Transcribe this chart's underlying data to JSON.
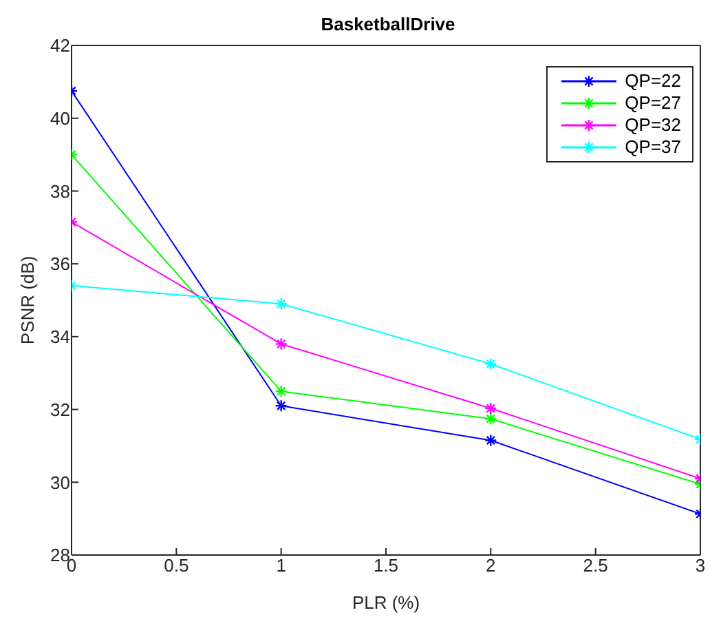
{
  "chart_data": {
    "type": "line",
    "title": "BasketballDrive",
    "xlabel": "PLR (%)",
    "ylabel": "PSNR (dB)",
    "x": [
      0,
      1,
      2,
      3
    ],
    "xlim": [
      0,
      3
    ],
    "xticks": [
      0,
      0.5,
      1,
      1.5,
      2,
      2.5,
      3
    ],
    "ylim": [
      28,
      42
    ],
    "yticks": [
      28,
      30,
      32,
      34,
      36,
      38,
      40,
      42
    ],
    "grid": false,
    "legend": "top right",
    "marker": "cross",
    "line_style": "solid",
    "series": [
      {
        "name": "QP=22",
        "color": "#0000ff",
        "values": [
          40.75,
          32.1,
          31.15,
          29.13
        ]
      },
      {
        "name": "QP=27",
        "color": "#00ff00",
        "values": [
          39.0,
          32.5,
          31.74,
          29.95
        ]
      },
      {
        "name": "QP=32",
        "color": "#ff00ff",
        "values": [
          37.15,
          33.8,
          32.03,
          30.1
        ]
      },
      {
        "name": "QP=37",
        "color": "#00ffff",
        "values": [
          35.4,
          34.9,
          33.25,
          31.18
        ]
      }
    ]
  }
}
